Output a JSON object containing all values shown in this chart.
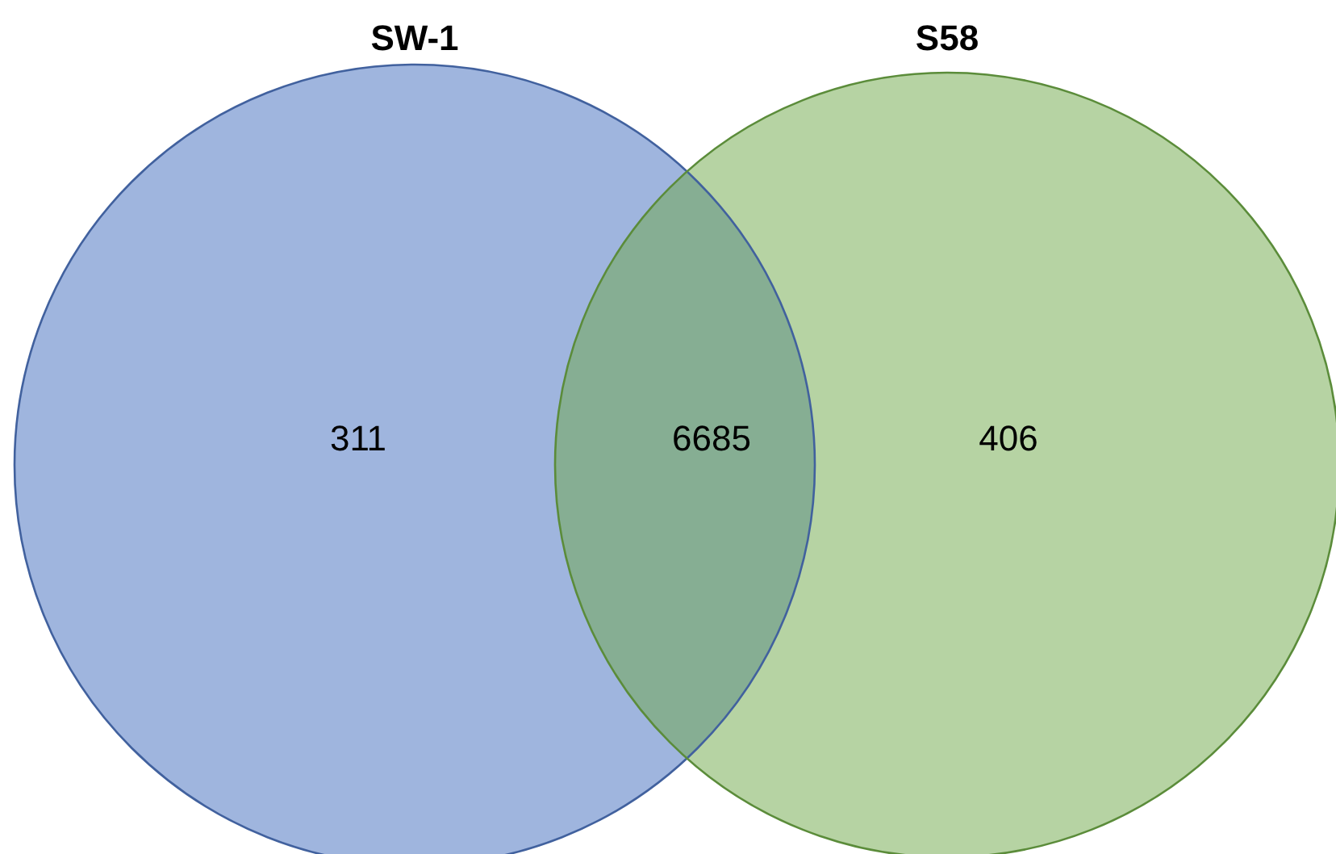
{
  "chart_data": {
    "type": "other",
    "categories": [
      null,
      null,
      null
    ],
    "values": [
      311,
      6685,
      406
    ],
    "data_labels": true,
    "colors": [
      "#9fb5de",
      "#86ae93",
      "#b6d3a3"
    ],
    "annotations": [
      "SW-1",
      "S58"
    ]
  }
}
